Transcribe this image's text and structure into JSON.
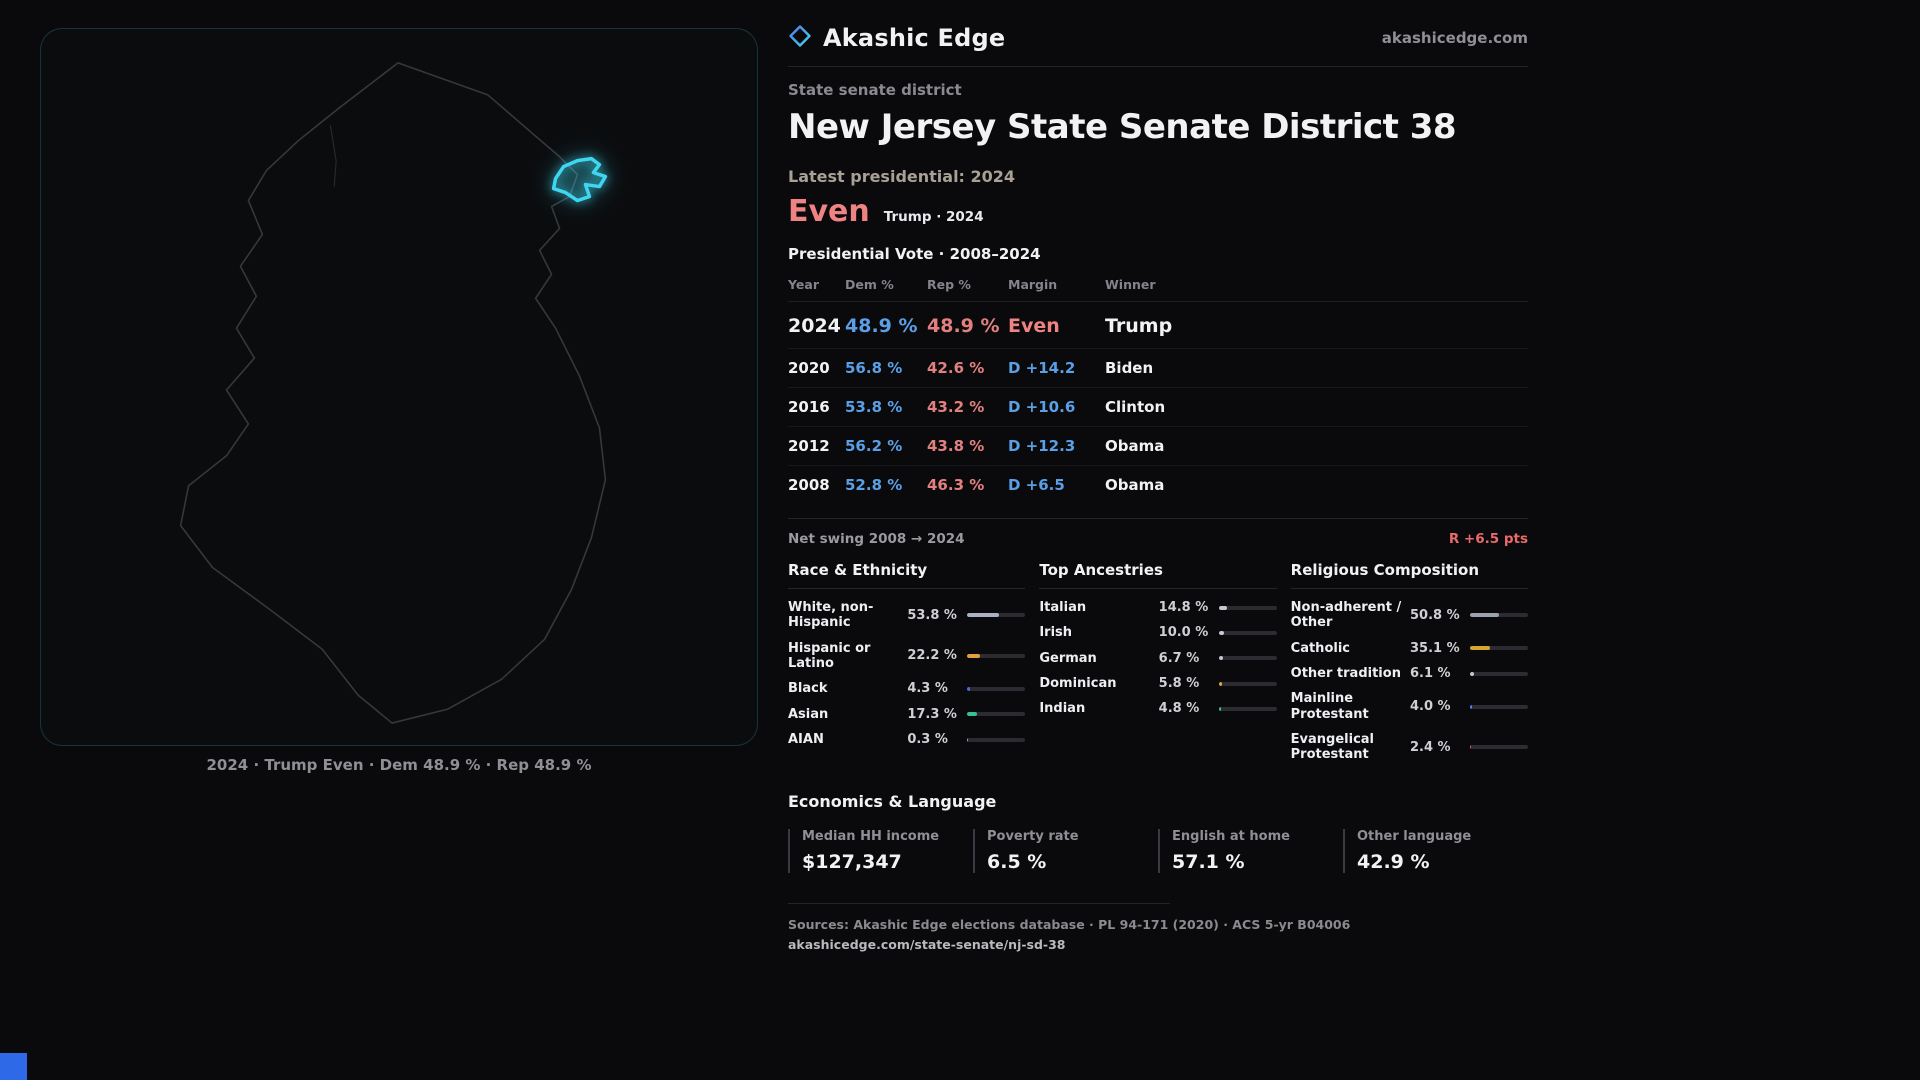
{
  "brand": {
    "name": "Akashic Edge",
    "site": "akashicedge.com"
  },
  "map": {
    "state": "New Jersey",
    "caption": "2024 · Trump Even · Dem 48.9 % · Rep 48.9 %",
    "highlight_color": "#3fd6f0"
  },
  "profile": {
    "kicker": "State senate district",
    "title": "New Jersey State Senate District 38",
    "latest_label": "Latest presidential: 2024",
    "result": "Even",
    "result_sub": "Trump · 2024"
  },
  "vote_table": {
    "title": "Presidential Vote · 2008–2024",
    "columns": [
      "Year",
      "Dem %",
      "Rep %",
      "Margin",
      "Winner"
    ],
    "rows": [
      {
        "year": "2024",
        "dem": "48.9 %",
        "rep": "48.9 %",
        "margin": "Even",
        "margin_type": "even",
        "winner": "Trump",
        "highlight": true
      },
      {
        "year": "2020",
        "dem": "56.8 %",
        "rep": "42.6 %",
        "margin": "D +14.2",
        "margin_type": "dem",
        "winner": "Biden",
        "highlight": false
      },
      {
        "year": "2016",
        "dem": "53.8 %",
        "rep": "43.2 %",
        "margin": "D +10.6",
        "margin_type": "dem",
        "winner": "Clinton",
        "highlight": false
      },
      {
        "year": "2012",
        "dem": "56.2 %",
        "rep": "43.8 %",
        "margin": "D +12.3",
        "margin_type": "dem",
        "winner": "Obama",
        "highlight": false
      },
      {
        "year": "2008",
        "dem": "52.8 %",
        "rep": "46.3 %",
        "margin": "D +6.5",
        "margin_type": "dem",
        "winner": "Obama",
        "highlight": false
      }
    ]
  },
  "swing": {
    "label": "Net swing 2008 → 2024",
    "value": "R +6.5 pts"
  },
  "demographics": [
    {
      "title": "Race & Ethnicity",
      "rows": [
        {
          "label": "White, non-Hispanic",
          "value": "53.8 %",
          "pct": 53.8,
          "color": "#a9b1c2"
        },
        {
          "label": "Hispanic or Latino",
          "value": "22.2 %",
          "pct": 22.2,
          "color": "#e0a23c"
        },
        {
          "label": "Black",
          "value": "4.3 %",
          "pct": 4.3,
          "color": "#5565dd"
        },
        {
          "label": "Asian",
          "value": "17.3 %",
          "pct": 17.3,
          "color": "#38c08e"
        },
        {
          "label": "AIAN",
          "value": "0.3 %",
          "pct": 0.3,
          "color": "#9aa0aa"
        }
      ]
    },
    {
      "title": "Top Ancestries",
      "rows": [
        {
          "label": "Italian",
          "value": "14.8 %",
          "pct": 14.8,
          "color": "#c4c9d2"
        },
        {
          "label": "Irish",
          "value": "10.0 %",
          "pct": 10.0,
          "color": "#c4c9d2"
        },
        {
          "label": "German",
          "value": "6.7 %",
          "pct": 6.7,
          "color": "#c4c9d2"
        },
        {
          "label": "Dominican",
          "value": "5.8 %",
          "pct": 5.8,
          "color": "#e0a23c"
        },
        {
          "label": "Indian",
          "value": "4.8 %",
          "pct": 4.8,
          "color": "#38c08e"
        }
      ]
    },
    {
      "title": "Religious Composition",
      "rows": [
        {
          "label": "Non-adherent / Other",
          "value": "50.8 %",
          "pct": 50.8,
          "color": "#9aa2b0"
        },
        {
          "label": "Catholic",
          "value": "35.1 %",
          "pct": 35.1,
          "color": "#d8a52e"
        },
        {
          "label": "Other tradition",
          "value": "6.1 %",
          "pct": 6.1,
          "color": "#c4c9d2"
        },
        {
          "label": "Mainline Protestant",
          "value": "4.0 %",
          "pct": 4.0,
          "color": "#5b7fe8"
        },
        {
          "label": "Evangelical Protestant",
          "value": "2.4 %",
          "pct": 2.4,
          "color": "#e0566e"
        }
      ]
    }
  ],
  "economics": {
    "title": "Economics & Language",
    "stats": [
      {
        "label": "Median HH income",
        "value": "$127,347"
      },
      {
        "label": "Poverty rate",
        "value": "6.5 %"
      },
      {
        "label": "English at home",
        "value": "57.1 %"
      },
      {
        "label": "Other language",
        "value": "42.9 %"
      }
    ]
  },
  "footer": {
    "sources": "Sources: Akashic Edge elections database · PL 94-171 (2020) · ACS 5-yr B04006",
    "permalink": "akashicedge.com/state-senate/nj-sd-38"
  },
  "chart_data": [
    {
      "type": "table",
      "title": "Presidential Vote · 2008–2024",
      "columns": [
        "Year",
        "Dem %",
        "Rep %",
        "Margin",
        "Winner"
      ],
      "rows": [
        [
          2024,
          48.9,
          48.9,
          "Even",
          "Trump"
        ],
        [
          2020,
          56.8,
          42.6,
          "D +14.2",
          "Biden"
        ],
        [
          2016,
          53.8,
          43.2,
          "D +10.6",
          "Clinton"
        ],
        [
          2012,
          56.2,
          43.8,
          "D +12.3",
          "Obama"
        ],
        [
          2008,
          52.8,
          46.3,
          "D +6.5",
          "Obama"
        ]
      ],
      "annotations": [
        "Net swing 2008 → 2024: R +6.5 pts"
      ]
    },
    {
      "type": "bar",
      "title": "Race & Ethnicity",
      "categories": [
        "White, non-Hispanic",
        "Hispanic or Latino",
        "Black",
        "Asian",
        "AIAN"
      ],
      "values": [
        53.8,
        22.2,
        4.3,
        17.3,
        0.3
      ],
      "xlim": [
        0,
        100
      ]
    },
    {
      "type": "bar",
      "title": "Top Ancestries",
      "categories": [
        "Italian",
        "Irish",
        "German",
        "Dominican",
        "Indian"
      ],
      "values": [
        14.8,
        10.0,
        6.7,
        5.8,
        4.8
      ],
      "xlim": [
        0,
        100
      ]
    },
    {
      "type": "bar",
      "title": "Religious Composition",
      "categories": [
        "Non-adherent / Other",
        "Catholic",
        "Other tradition",
        "Mainline Protestant",
        "Evangelical Protestant"
      ],
      "values": [
        50.8,
        35.1,
        6.1,
        4.0,
        2.4
      ],
      "xlim": [
        0,
        100
      ]
    },
    {
      "type": "bar",
      "title": "Economics & Language",
      "categories": [
        "Median HH income",
        "Poverty rate",
        "English at home",
        "Other language"
      ],
      "values": [
        127347,
        6.5,
        57.1,
        42.9
      ]
    }
  ]
}
